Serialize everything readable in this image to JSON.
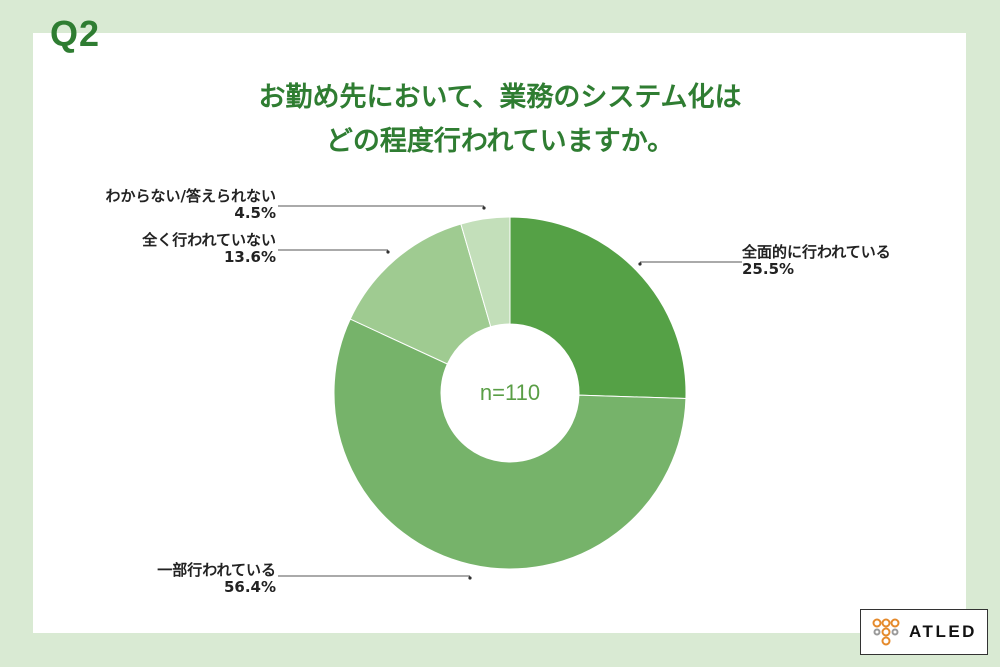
{
  "question_label": "Q2",
  "title_lines": [
    "お勤め先において、業務のシステム化は",
    "どの程度行われていますか。"
  ],
  "center_text": "n=110",
  "logo_text": "ATLED",
  "colors": {
    "background": "#d9ead3",
    "title": "#2f7d32",
    "slices": [
      "#55a146",
      "#76b36a",
      "#9fcb91",
      "#c3dfba"
    ]
  },
  "chart_data": {
    "type": "pie",
    "donut": true,
    "categories": [
      "全面的に行われている",
      "一部行われている",
      "全く行われていない",
      "わからない/答えられない"
    ],
    "values": [
      25.5,
      56.4,
      13.6,
      4.5
    ],
    "value_labels": [
      "25.5%",
      "56.4%",
      "13.6%",
      "4.5%"
    ]
  }
}
